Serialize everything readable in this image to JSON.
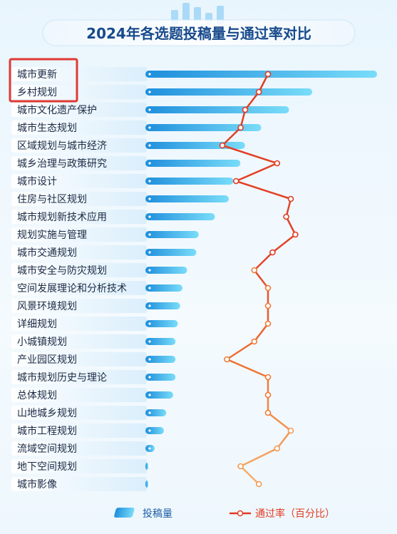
{
  "chart_data": {
    "type": "bar",
    "title": "2024年各选题投稿量与通过率对比",
    "orientation": "horizontal",
    "categories": [
      "城市更新",
      "乡村规划",
      "城市文化遗产保护",
      "城市生态规划",
      "区域规划与城市经济",
      "城乡治理与政策研究",
      "城市设计",
      "住房与社区规划",
      "城市规划新技术应用",
      "规划实施与管理",
      "城市交通规划",
      "城市安全与防灾规划",
      "空间发展理论和分析技术",
      "风景环境规划",
      "详细规划",
      "小城镇规划",
      "产业园区规划",
      "城市规划历史与理论",
      "总体规划",
      "山地城乡规划",
      "城市工程规划",
      "流域空间规划",
      "地下空间规划",
      "城市影像"
    ],
    "highlighted_categories": [
      "城市更新",
      "乡村规划"
    ],
    "series": [
      {
        "name": "投稿量",
        "type": "bar",
        "values": [
          100,
          72,
          62,
          50,
          43,
          41,
          38,
          36,
          30,
          23,
          22,
          18,
          16,
          15,
          14,
          13,
          13,
          13,
          12,
          9,
          8,
          4,
          1,
          0.5
        ]
      },
      {
        "name": "通过率（百分比）",
        "type": "line",
        "values": [
          60,
          58,
          55,
          54,
          50,
          62,
          53,
          65,
          64,
          66,
          61,
          57,
          60,
          60,
          60,
          57,
          51,
          60,
          60,
          60,
          65,
          62,
          54,
          58
        ]
      }
    ],
    "legend": {
      "position": "bottom",
      "entries": [
        "投稿量",
        "通过率（百分比）"
      ]
    },
    "grid": false,
    "colors": {
      "bar": "#2aa4e8",
      "bar_light": "#6fd4f7",
      "line_top": "#e13c22",
      "line_bottom": "#f4a35a",
      "title": "#174a8c",
      "highlight": "#e03a33"
    }
  }
}
